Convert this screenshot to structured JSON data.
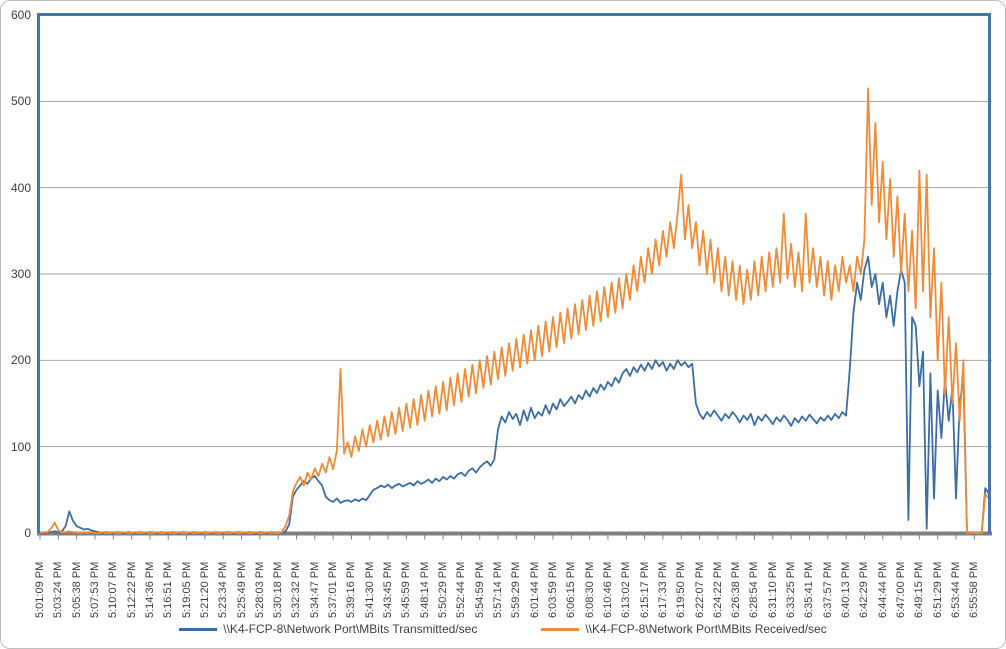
{
  "colors": {
    "plot_border": "#4577AE",
    "gridline": "#A6A6A6",
    "axis_line": "#7F7F7F",
    "tick": "#7F7F7F",
    "text": "#3F3F3F",
    "figure_border": "#BFBFBF",
    "background": "#FFFFFF"
  },
  "chart_data": {
    "type": "line",
    "title": "",
    "xlabel": "",
    "ylabel": "",
    "ylim": [
      0,
      600
    ],
    "y_ticks": [
      0,
      100,
      200,
      300,
      400,
      500,
      600
    ],
    "grid": true,
    "legend_position": "bottom",
    "points_per_label": 5,
    "x_tick_labels": [
      "5:01:09 PM",
      "5:03:24 PM",
      "5:05:38 PM",
      "5:07:53 PM",
      "5:10:07 PM",
      "5:12:22 PM",
      "5:14:36 PM",
      "5:16:51 PM",
      "5:19:05 PM",
      "5:21:20 PM",
      "5:23:34 PM",
      "5:25:49 PM",
      "5:28:03 PM",
      "5:30:18 PM",
      "5:32:32 PM",
      "5:34:47 PM",
      "5:37:01 PM",
      "5:39:16 PM",
      "5:41:30 PM",
      "5:43:45 PM",
      "5:45:59 PM",
      "5:48:14 PM",
      "5:50:29 PM",
      "5:52:44 PM",
      "5:54:59 PM",
      "5:57:14 PM",
      "5:59:29 PM",
      "6:01:44 PM",
      "6:03:59 PM",
      "6:06:15 PM",
      "6:08:30 PM",
      "6:10:46 PM",
      "6:13:02 PM",
      "6:15:17 PM",
      "6:17:33 PM",
      "6:19:50 PM",
      "6:22:07 PM",
      "6:24:22 PM",
      "6:26:38 PM",
      "6:28:54 PM",
      "6:31:10 PM",
      "6:33:25 PM",
      "6:35:41 PM",
      "6:37:57 PM",
      "6:40:13 PM",
      "6:42:29 PM",
      "6:44:44 PM",
      "6:47:00 PM",
      "6:49:15 PM",
      "6:51:29 PM",
      "6:53:44 PM",
      "6:55:58 PM"
    ],
    "series": [
      {
        "name": "\\\\K4-FCP-8\\Network Port\\MBits Transmitted/sec",
        "color": "#3D6DA5",
        "values": [
          0,
          0,
          1,
          1,
          2,
          1,
          2,
          8,
          25,
          14,
          8,
          6,
          4,
          5,
          3,
          2,
          1,
          0,
          1,
          0,
          0,
          1,
          0,
          0,
          1,
          0,
          0,
          1,
          0,
          0,
          1,
          0,
          0,
          1,
          0,
          0,
          1,
          0,
          0,
          1,
          0,
          0,
          1,
          0,
          0,
          1,
          0,
          0,
          1,
          0,
          0,
          1,
          0,
          0,
          1,
          0,
          0,
          1,
          0,
          0,
          1,
          0,
          0,
          1,
          0,
          0,
          0,
          2,
          10,
          42,
          50,
          55,
          60,
          57,
          63,
          66,
          60,
          55,
          42,
          38,
          36,
          40,
          35,
          37,
          38,
          36,
          39,
          37,
          40,
          38,
          44,
          50,
          52,
          55,
          53,
          56,
          52,
          55,
          57,
          54,
          56,
          58,
          55,
          60,
          57,
          59,
          62,
          58,
          63,
          60,
          65,
          62,
          66,
          63,
          68,
          70,
          66,
          72,
          75,
          70,
          76,
          80,
          83,
          78,
          85,
          120,
          135,
          128,
          140,
          132,
          138,
          125,
          142,
          130,
          145,
          133,
          140,
          136,
          148,
          138,
          150,
          143,
          155,
          147,
          152,
          158,
          150,
          160,
          155,
          165,
          158,
          168,
          162,
          172,
          166,
          175,
          170,
          180,
          174,
          185,
          190,
          182,
          192,
          186,
          195,
          188,
          197,
          190,
          200,
          193,
          198,
          188,
          196,
          190,
          200,
          194,
          198,
          192,
          196,
          150,
          138,
          132,
          140,
          135,
          142,
          136,
          130,
          138,
          133,
          140,
          135,
          128,
          136,
          131,
          138,
          125,
          135,
          130,
          137,
          132,
          126,
          134,
          129,
          136,
          131,
          124,
          133,
          128,
          135,
          130,
          137,
          132,
          127,
          134,
          130,
          136,
          131,
          138,
          133,
          140,
          136,
          190,
          255,
          290,
          270,
          305,
          320,
          285,
          300,
          265,
          290,
          250,
          275,
          240,
          280,
          305,
          290,
          15,
          250,
          240,
          170,
          210,
          5,
          185,
          40,
          165,
          110,
          178,
          130,
          168,
          40,
          150,
          180,
          0,
          0,
          0,
          0,
          0,
          52,
          45
        ]
      },
      {
        "name": "\\\\K4-FCP-8\\Network Port\\MBits Received/sec",
        "color": "#F08C38",
        "values": [
          0,
          1,
          1,
          5,
          12,
          3,
          1,
          1,
          2,
          1,
          1,
          0,
          1,
          0,
          1,
          0,
          0,
          1,
          0,
          0,
          1,
          0,
          0,
          1,
          0,
          0,
          1,
          0,
          0,
          1,
          0,
          0,
          1,
          0,
          0,
          1,
          0,
          0,
          1,
          0,
          0,
          1,
          0,
          0,
          1,
          0,
          0,
          1,
          0,
          0,
          1,
          0,
          0,
          1,
          0,
          0,
          1,
          0,
          0,
          1,
          0,
          0,
          1,
          0,
          0,
          0,
          1,
          8,
          20,
          48,
          58,
          65,
          55,
          70,
          62,
          75,
          66,
          80,
          70,
          88,
          74,
          95,
          190,
          92,
          105,
          88,
          112,
          95,
          120,
          100,
          125,
          105,
          130,
          108,
          135,
          112,
          140,
          115,
          145,
          118,
          150,
          122,
          155,
          125,
          160,
          130,
          165,
          135,
          170,
          138,
          175,
          142,
          180,
          148,
          185,
          152,
          190,
          158,
          195,
          162,
          200,
          168,
          205,
          172,
          210,
          178,
          215,
          182,
          220,
          188,
          225,
          192,
          230,
          196,
          235,
          200,
          240,
          205,
          245,
          210,
          250,
          215,
          255,
          220,
          260,
          225,
          265,
          230,
          270,
          235,
          275,
          240,
          280,
          245,
          285,
          250,
          290,
          255,
          295,
          260,
          300,
          270,
          310,
          280,
          320,
          290,
          330,
          300,
          340,
          310,
          350,
          320,
          360,
          330,
          370,
          415,
          340,
          380,
          330,
          360,
          310,
          350,
          300,
          340,
          290,
          330,
          280,
          320,
          275,
          315,
          270,
          310,
          265,
          305,
          270,
          315,
          275,
          320,
          280,
          325,
          285,
          330,
          290,
          370,
          295,
          335,
          285,
          325,
          280,
          370,
          290,
          330,
          285,
          320,
          275,
          315,
          270,
          310,
          280,
          320,
          290,
          310,
          280,
          320,
          300,
          340,
          515,
          380,
          475,
          360,
          430,
          340,
          410,
          320,
          390,
          300,
          370,
          280,
          350,
          260,
          420,
          280,
          415,
          250,
          330,
          200,
          290,
          160,
          250,
          150,
          220,
          130,
          200,
          0,
          0,
          0,
          0,
          0,
          45,
          40
        ]
      }
    ]
  }
}
